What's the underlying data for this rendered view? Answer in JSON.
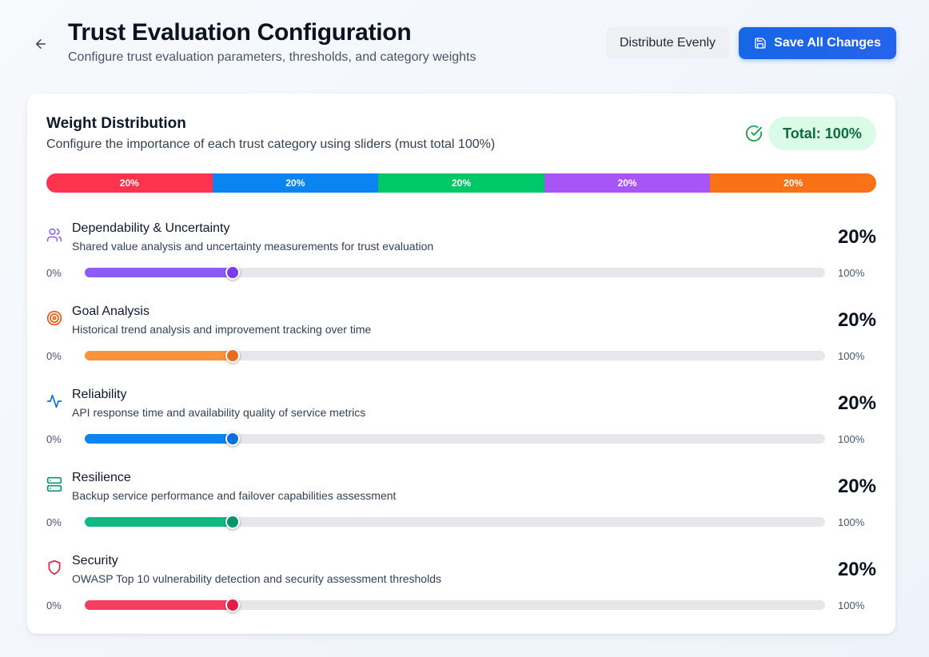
{
  "header": {
    "title": "Trust Evaluation Configuration",
    "subtitle": "Configure trust evaluation parameters, thresholds, and category weights",
    "distribute_label": "Distribute Evenly",
    "save_label": "Save All Changes"
  },
  "weights": {
    "title": "Weight Distribution",
    "subtitle": "Configure the importance of each trust category using sliders (must total 100%)",
    "total_label": "Total: 100%",
    "total_color": "#16a34a",
    "distribution": [
      {
        "label": "20%",
        "value": 20,
        "color": "#ff334d"
      },
      {
        "label": "20%",
        "value": 20,
        "color": "#0a84f0"
      },
      {
        "label": "20%",
        "value": 20,
        "color": "#00c767"
      },
      {
        "label": "20%",
        "value": 20,
        "color": "#a855f7"
      },
      {
        "label": "20%",
        "value": 20,
        "color": "#f97316"
      }
    ]
  },
  "categories": [
    {
      "name": "Dependability & Uncertainty",
      "description": "Shared value analysis and uncertainty measurements for trust evaluation",
      "percent_label": "20%",
      "value": 20,
      "min_label": "0%",
      "max_label": "100%",
      "icon": "users-icon",
      "color": "#8b5cf6",
      "fill": "#8b5cf6",
      "thumb": "#7c3aed"
    },
    {
      "name": "Goal Analysis",
      "description": "Historical trend analysis and improvement tracking over time",
      "percent_label": "20%",
      "value": 20,
      "min_label": "0%",
      "max_label": "100%",
      "icon": "target-icon",
      "color": "#ea580c",
      "fill": "#fb923c",
      "thumb": "#ea6a1f"
    },
    {
      "name": "Reliability",
      "description": "API response time and availability quality of service metrics",
      "percent_label": "20%",
      "value": 20,
      "min_label": "0%",
      "max_label": "100%",
      "icon": "activity-icon",
      "color": "#0a6fe0",
      "fill": "#0a84f0",
      "thumb": "#0a6fe0"
    },
    {
      "name": "Resilience",
      "description": "Backup service performance and failover capabilities assessment",
      "percent_label": "20%",
      "value": 20,
      "min_label": "0%",
      "max_label": "100%",
      "icon": "server-icon",
      "color": "#059669",
      "fill": "#10b981",
      "thumb": "#059669"
    },
    {
      "name": "Security",
      "description": "OWASP Top 10 vulnerability detection and security assessment thresholds",
      "percent_label": "20%",
      "value": 20,
      "min_label": "0%",
      "max_label": "100%",
      "icon": "shield-icon",
      "color": "#e11d48",
      "fill": "#f43f5e",
      "thumb": "#e11d48"
    }
  ]
}
